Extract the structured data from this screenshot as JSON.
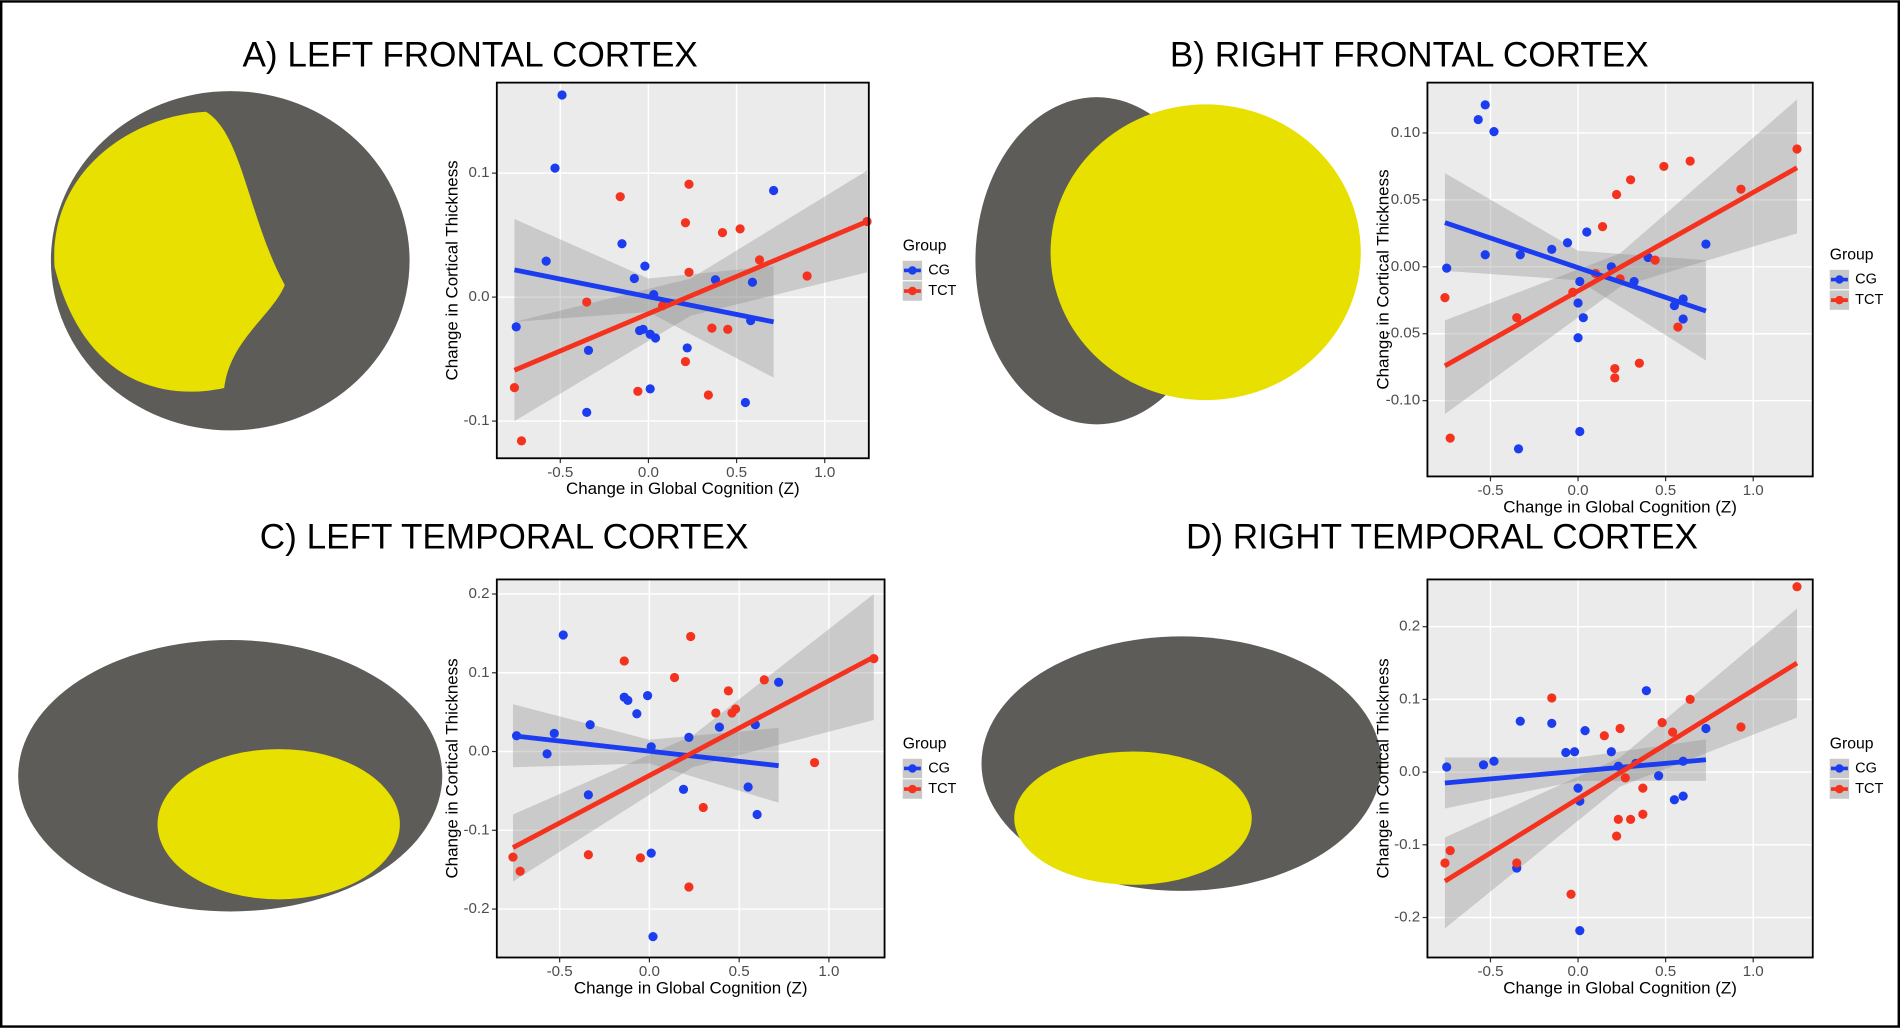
{
  "chart_data": [
    {
      "type": "scatter",
      "title": "A) LEFT FRONTAL CORTEX",
      "x_label": "Change in Global Cognition (Z)",
      "y_label": "Change in Cortical Thickness",
      "legend_title": "Group",
      "grid": true,
      "xlim": [
        -0.86,
        1.25
      ],
      "ylim": [
        -0.13,
        0.173
      ],
      "xticks": [
        {
          "value": -0.5,
          "label": "-0.5"
        },
        {
          "value": 0,
          "label": "0.0"
        },
        {
          "value": 0.5,
          "label": "0.5"
        },
        {
          "value": 1,
          "label": "1.0"
        }
      ],
      "yticks": [
        {
          "value": -0.1,
          "label": "-0.1"
        },
        {
          "value": 0,
          "label": "0.0"
        },
        0.1
      ],
      "series": [
        {
          "name": "CG",
          "color": "#1c3cf0",
          "x": [
            -0.49,
            -0.53,
            -0.58,
            -0.75,
            -0.35,
            -0.34,
            -0.15,
            -0.08,
            -0.02,
            -0.05,
            0.01,
            0.04,
            0.01,
            0.03,
            0.22,
            0.38,
            0.55,
            0.58,
            0.59,
            0.71,
            -0.03
          ],
          "values": [
            0.163,
            0.104,
            0.029,
            -0.024,
            -0.093,
            -0.043,
            0.043,
            0.015,
            0.025,
            -0.027,
            -0.03,
            -0.033,
            -0.074,
            0.002,
            -0.041,
            0.014,
            -0.085,
            -0.019,
            0.012,
            0.086,
            -0.026
          ],
          "fit": {
            "x": [
              -0.76,
              0.71
            ],
            "values": [
              0.022,
              -0.02
            ]
          },
          "ci": {
            "x": [
              -0.76,
              0,
              0.71
            ],
            "upper": [
              0.063,
              0.015,
              0.025
            ],
            "lower": [
              -0.02,
              -0.012,
              -0.065
            ]
          }
        },
        {
          "name": "TCT",
          "color": "#f4321e",
          "x": [
            -0.76,
            -0.72,
            -0.35,
            -0.16,
            -0.06,
            0.21,
            0.23,
            0.21,
            0.23,
            0.36,
            0.34,
            0.42,
            0.52,
            0.45,
            0.63,
            0.9,
            1.24,
            0.08
          ],
          "values": [
            -0.073,
            -0.116,
            -0.004,
            0.081,
            -0.076,
            0.06,
            0.091,
            -0.052,
            0.02,
            -0.025,
            -0.079,
            0.052,
            0.055,
            -0.026,
            0.03,
            0.017,
            0.061,
            -0.007
          ],
          "fit": {
            "x": [
              -0.76,
              1.24
            ],
            "values": [
              -0.059,
              0.061
            ]
          },
          "ci": {
            "x": [
              -0.76,
              0.24,
              1.24
            ],
            "upper": [
              -0.02,
              0.015,
              0.102
            ],
            "lower": [
              -0.1,
              -0.015,
              0.02
            ]
          }
        }
      ]
    },
    {
      "type": "scatter",
      "title": "B) RIGHT FRONTAL CORTEX",
      "x_label": "Change in Global Cognition (Z)",
      "y_label": "Change in Cortical Thickness",
      "legend_title": "Group",
      "grid": true,
      "xlim": [
        -0.86,
        1.34
      ],
      "ylim": [
        -0.1566,
        0.1376
      ],
      "xticks": [
        {
          "value": -0.5,
          "label": "-0.5"
        },
        {
          "value": 0,
          "label": "0.0"
        },
        {
          "value": 0.5,
          "label": "0.5"
        },
        {
          "value": 1,
          "label": "1.0"
        }
      ],
      "yticks": [
        {
          "value": -0.1,
          "label": "-0.10"
        },
        {
          "value": -0.05,
          "label": "-0.05"
        },
        {
          "value": 0,
          "label": "0.00"
        },
        0.05,
        {
          "value": 0.1,
          "label": "0.10"
        }
      ],
      "series": [
        {
          "name": "CG",
          "color": "#1c3cf0",
          "x": [
            -0.53,
            -0.57,
            -0.48,
            -0.75,
            -0.53,
            -0.34,
            -0.33,
            -0.15,
            -0.06,
            0.01,
            0.05,
            0.0,
            0.03,
            0.0,
            0.01,
            0.19,
            0.4,
            0.55,
            0.6,
            0.6,
            0.73,
            0.32
          ],
          "values": [
            0.121,
            0.11,
            0.101,
            -0.001,
            0.009,
            -0.136,
            0.009,
            0.013,
            0.018,
            -0.011,
            0.026,
            -0.027,
            -0.038,
            -0.053,
            -0.123,
            0.0,
            0.007,
            -0.029,
            -0.024,
            -0.039,
            0.017,
            -0.011
          ],
          "fit": {
            "x": [
              -0.76,
              0.73
            ],
            "values": [
              0.033,
              -0.033
            ]
          },
          "ci": {
            "x": [
              -0.76,
              0,
              0.73
            ],
            "upper": [
              0.07,
              0.012,
              0.005
            ],
            "lower": [
              -0.003,
              -0.01,
              -0.07
            ]
          }
        },
        {
          "name": "TCT",
          "color": "#f4321e",
          "x": [
            -0.76,
            -0.73,
            -0.35,
            -0.03,
            0.14,
            0.22,
            0.3,
            0.49,
            0.64,
            0.21,
            0.21,
            0.35,
            0.57,
            0.93,
            1.25,
            0.24,
            0.44,
            0.1
          ],
          "values": [
            -0.023,
            -0.128,
            -0.038,
            -0.019,
            0.03,
            0.054,
            0.065,
            0.075,
            0.079,
            -0.076,
            -0.083,
            -0.072,
            -0.045,
            0.058,
            0.088,
            -0.009,
            0.005,
            -0.005
          ],
          "fit": {
            "x": [
              -0.76,
              1.25
            ],
            "values": [
              -0.074,
              0.074
            ]
          },
          "ci": {
            "x": [
              -0.76,
              0.24,
              1.25
            ],
            "upper": [
              -0.04,
              0.01,
              0.125
            ],
            "lower": [
              -0.11,
              -0.015,
              0.025
            ]
          }
        }
      ]
    },
    {
      "type": "scatter",
      "title": "C) LEFT TEMPORAL CORTEX",
      "x_label": "Change in Global Cognition (Z)",
      "y_label": "Change in Cortical Thickness",
      "legend_title": "Group",
      "grid": true,
      "xlim": [
        -0.85,
        1.31
      ],
      "ylim": [
        -0.2615,
        0.2185
      ],
      "xticks": [
        {
          "value": -0.5,
          "label": "-0.5"
        },
        {
          "value": 0,
          "label": "0.0"
        },
        {
          "value": 0.5,
          "label": "0.5"
        },
        {
          "value": 1,
          "label": "1.0"
        }
      ],
      "yticks": [
        {
          "value": -0.2,
          "label": "-0.2"
        },
        {
          "value": -0.1,
          "label": "-0.1"
        },
        {
          "value": 0,
          "label": "0.0"
        },
        0.1,
        0.2
      ],
      "series": [
        {
          "name": "CG",
          "color": "#1c3cf0",
          "x": [
            -0.48,
            -0.53,
            -0.57,
            -0.74,
            -0.33,
            -0.34,
            -0.14,
            -0.01,
            -0.07,
            -0.12,
            0.01,
            0.01,
            0.02,
            0.22,
            0.19,
            0.39,
            0.55,
            0.59,
            0.6,
            0.72
          ],
          "values": [
            0.148,
            0.023,
            -0.003,
            0.02,
            0.034,
            -0.055,
            0.069,
            0.071,
            0.048,
            0.065,
            0.006,
            -0.129,
            -0.235,
            0.018,
            -0.048,
            0.031,
            -0.045,
            0.034,
            -0.08,
            0.088
          ],
          "fit": {
            "x": [
              -0.76,
              0.72
            ],
            "values": [
              0.02,
              -0.018
            ]
          },
          "ci": {
            "x": [
              -0.76,
              0,
              0.72
            ],
            "upper": [
              0.06,
              0.015,
              0.03
            ],
            "lower": [
              -0.02,
              -0.015,
              -0.065
            ]
          }
        },
        {
          "name": "TCT",
          "color": "#f4321e",
          "x": [
            -0.76,
            -0.72,
            -0.34,
            -0.14,
            -0.05,
            0.14,
            0.23,
            0.22,
            0.3,
            0.37,
            0.44,
            0.48,
            0.46,
            0.64,
            0.92,
            1.25
          ],
          "values": [
            -0.134,
            -0.152,
            -0.131,
            0.115,
            -0.135,
            0.094,
            0.146,
            -0.172,
            -0.071,
            0.049,
            0.077,
            0.054,
            0.049,
            0.091,
            -0.014,
            0.118
          ],
          "fit": {
            "x": [
              -0.76,
              1.25
            ],
            "values": [
              -0.122,
              0.12
            ]
          },
          "ci": {
            "x": [
              -0.76,
              0.24,
              1.25
            ],
            "upper": [
              -0.08,
              0.02,
              0.2
            ],
            "lower": [
              -0.165,
              -0.02,
              0.04
            ]
          }
        }
      ]
    },
    {
      "type": "scatter",
      "title": "D) RIGHT TEMPORAL CORTEX",
      "x_label": "Change in Global Cognition (Z)",
      "y_label": "Change in Cortical Thickness",
      "legend_title": "Group",
      "grid": true,
      "xlim": [
        -0.86,
        1.34
      ],
      "ylim": [
        -0.255,
        0.265
      ],
      "xticks": [
        {
          "value": -0.5,
          "label": "-0.5"
        },
        {
          "value": 0,
          "label": "0.0"
        },
        {
          "value": 0.5,
          "label": "0.5"
        },
        {
          "value": 1,
          "label": "1.0"
        }
      ],
      "yticks": [
        {
          "value": -0.2,
          "label": "-0.2"
        },
        {
          "value": -0.1,
          "label": "-0.1"
        },
        {
          "value": 0,
          "label": "0.0"
        },
        0.1,
        0.2
      ],
      "series": [
        {
          "name": "CG",
          "color": "#1c3cf0",
          "x": [
            -0.75,
            -0.54,
            -0.48,
            -0.33,
            -0.35,
            -0.15,
            -0.07,
            -0.02,
            0.04,
            0.0,
            0.01,
            0.01,
            0.19,
            0.23,
            0.39,
            0.46,
            0.55,
            0.6,
            0.6,
            0.73,
            0.33
          ],
          "values": [
            0.007,
            0.01,
            0.015,
            0.07,
            -0.132,
            0.067,
            0.027,
            0.028,
            0.057,
            -0.022,
            -0.04,
            -0.218,
            0.028,
            0.008,
            0.112,
            -0.005,
            -0.038,
            -0.033,
            0.015,
            0.06,
            0.012
          ],
          "fit": {
            "x": [
              -0.76,
              0.73
            ],
            "values": [
              -0.015,
              0.017
            ]
          },
          "ci": {
            "x": [
              -0.76,
              0,
              0.73
            ],
            "upper": [
              0.02,
              0.02,
              0.045
            ],
            "lower": [
              -0.05,
              -0.012,
              -0.012
            ]
          }
        },
        {
          "name": "TCT",
          "color": "#f4321e",
          "x": [
            -0.76,
            -0.73,
            -0.35,
            -0.15,
            -0.04,
            0.15,
            0.24,
            0.23,
            0.22,
            0.3,
            0.37,
            0.37,
            0.48,
            0.54,
            0.64,
            0.93,
            1.25,
            0.27
          ],
          "values": [
            -0.125,
            -0.108,
            -0.125,
            0.102,
            -0.168,
            0.05,
            0.06,
            -0.065,
            -0.088,
            -0.065,
            -0.058,
            -0.022,
            0.068,
            0.055,
            0.1,
            0.062,
            0.255,
            -0.008
          ],
          "fit": {
            "x": [
              -0.76,
              1.25
            ],
            "values": [
              -0.15,
              0.15
            ]
          },
          "ci": {
            "x": [
              -0.76,
              0.24,
              1.25
            ],
            "upper": [
              -0.09,
              0.02,
              0.225
            ],
            "lower": [
              -0.215,
              -0.02,
              0.075
            ]
          }
        }
      ]
    }
  ]
}
